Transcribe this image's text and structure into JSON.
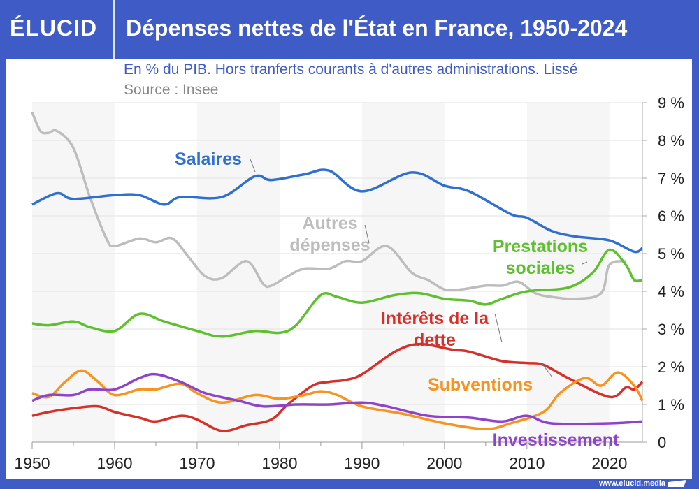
{
  "header": {
    "logo": "ÉLUCID",
    "title": "Dépenses nettes de l'État en France, 1950-2024"
  },
  "footer": {
    "url": "www.elucid.media"
  },
  "chart_data": {
    "type": "line",
    "subtitle": "En % du PIB. Hors tranferts courants à d'autres administrations. Lissé",
    "source": "Source : Insee",
    "xlim": [
      1950,
      2024
    ],
    "ylim": [
      0,
      9
    ],
    "xticks": [
      "1950",
      "1960",
      "1970",
      "1980",
      "1990",
      "2000",
      "2010",
      "2020"
    ],
    "yticks": [
      "0",
      "1 %",
      "2 %",
      "3 %",
      "4 %",
      "5 %",
      "6 %",
      "7 %",
      "8 %",
      "9 %"
    ],
    "grid": true,
    "y_axis_position": "right",
    "series": [
      {
        "name": "Salaires",
        "color": "#2f6fd0",
        "label_lines": [
          "Salaires"
        ],
        "x": [
          1950,
          1953,
          1955,
          1960,
          1963,
          1966,
          1968,
          1973,
          1977,
          1979,
          1983,
          1986,
          1990,
          1996,
          2000,
          2003,
          2008,
          2010,
          2013,
          2016,
          2020,
          2023,
          2024
        ],
        "y": [
          6.3,
          6.6,
          6.45,
          6.55,
          6.55,
          6.3,
          6.5,
          6.5,
          7.05,
          6.95,
          7.1,
          7.2,
          6.65,
          7.15,
          6.8,
          6.65,
          6.05,
          5.95,
          5.6,
          5.45,
          5.35,
          5.05,
          5.15
        ]
      },
      {
        "name": "Autres dépenses",
        "color": "#bdbdbd",
        "label_lines": [
          "Autres",
          "dépenses"
        ],
        "x": [
          1950,
          1951,
          1952,
          1953,
          1955,
          1957,
          1959,
          1960,
          1963,
          1965,
          1967,
          1969,
          1971,
          1973,
          1976,
          1978,
          1979,
          1981,
          1983,
          1986,
          1988,
          1990,
          1993,
          1996,
          1998,
          2000,
          2002,
          2005,
          2007,
          2009,
          2011,
          2013,
          2016,
          2019,
          2020,
          2022
        ],
        "y": [
          8.75,
          8.25,
          8.2,
          8.25,
          7.8,
          6.5,
          5.4,
          5.2,
          5.4,
          5.3,
          5.4,
          4.9,
          4.4,
          4.35,
          4.8,
          4.2,
          4.15,
          4.4,
          4.6,
          4.6,
          4.8,
          4.8,
          5.2,
          4.5,
          4.3,
          4.05,
          4.05,
          4.15,
          4.15,
          4.25,
          3.95,
          3.85,
          3.8,
          3.95,
          4.7,
          4.8
        ]
      },
      {
        "name": "Prestations sociales",
        "color": "#5ec02f",
        "label_lines": [
          "Prestations",
          "sociales"
        ],
        "x": [
          1950,
          1952,
          1955,
          1957,
          1960,
          1963,
          1966,
          1970,
          1973,
          1977,
          1980,
          1982,
          1985,
          1987,
          1990,
          1994,
          1997,
          2000,
          2003,
          2005,
          2007,
          2010,
          2015,
          2018,
          2020,
          2022,
          2023,
          2024
        ],
        "y": [
          3.15,
          3.1,
          3.2,
          3.05,
          2.95,
          3.4,
          3.2,
          2.95,
          2.8,
          2.95,
          2.9,
          3.1,
          3.9,
          3.85,
          3.7,
          3.9,
          3.95,
          3.8,
          3.75,
          3.65,
          3.8,
          4.0,
          4.1,
          4.5,
          5.1,
          4.7,
          4.3,
          4.3
        ]
      },
      {
        "name": "Intérêts de la dette",
        "color": "#d6302b",
        "label_lines": [
          "Intérêts de la",
          "dette"
        ],
        "x": [
          1950,
          1952,
          1955,
          1958,
          1960,
          1963,
          1965,
          1968,
          1970,
          1973,
          1976,
          1979,
          1981,
          1984,
          1986,
          1988,
          1990,
          1994,
          1997,
          2001,
          2003,
          2007,
          2010,
          2012,
          2015,
          2020,
          2022,
          2023,
          2024
        ],
        "y": [
          0.7,
          0.8,
          0.9,
          0.95,
          0.8,
          0.65,
          0.55,
          0.7,
          0.6,
          0.3,
          0.45,
          0.6,
          1.0,
          1.5,
          1.6,
          1.65,
          1.8,
          2.4,
          2.6,
          2.45,
          2.4,
          2.15,
          2.1,
          2.05,
          1.7,
          1.2,
          1.45,
          1.4,
          1.6
        ]
      },
      {
        "name": "Subventions",
        "color": "#f7931e",
        "label_lines": [
          "Subventions"
        ],
        "x": [
          1950,
          1952,
          1954,
          1956,
          1958,
          1960,
          1963,
          1965,
          1968,
          1970,
          1973,
          1977,
          1980,
          1983,
          1985,
          1987,
          1990,
          1995,
          2000,
          2005,
          2008,
          2012,
          2014,
          2017,
          2019,
          2021,
          2023,
          2024
        ],
        "y": [
          1.3,
          1.2,
          1.6,
          1.9,
          1.6,
          1.25,
          1.4,
          1.4,
          1.55,
          1.3,
          1.05,
          1.25,
          1.15,
          1.25,
          1.35,
          1.25,
          0.95,
          0.75,
          0.5,
          0.35,
          0.5,
          0.8,
          1.3,
          1.7,
          1.5,
          1.85,
          1.5,
          1.1
        ]
      },
      {
        "name": "Investissement",
        "color": "#8e44c9",
        "label_lines": [
          "Investissement"
        ],
        "x": [
          1950,
          1952,
          1955,
          1957,
          1960,
          1963,
          1965,
          1968,
          1971,
          1975,
          1978,
          1982,
          1986,
          1990,
          1993,
          1998,
          2003,
          2007,
          2010,
          2013,
          2020,
          2024
        ],
        "y": [
          1.1,
          1.25,
          1.25,
          1.4,
          1.4,
          1.7,
          1.8,
          1.6,
          1.3,
          1.1,
          0.95,
          1.0,
          1.0,
          1.05,
          0.95,
          0.7,
          0.65,
          0.55,
          0.7,
          0.5,
          0.5,
          0.55
        ]
      }
    ]
  }
}
